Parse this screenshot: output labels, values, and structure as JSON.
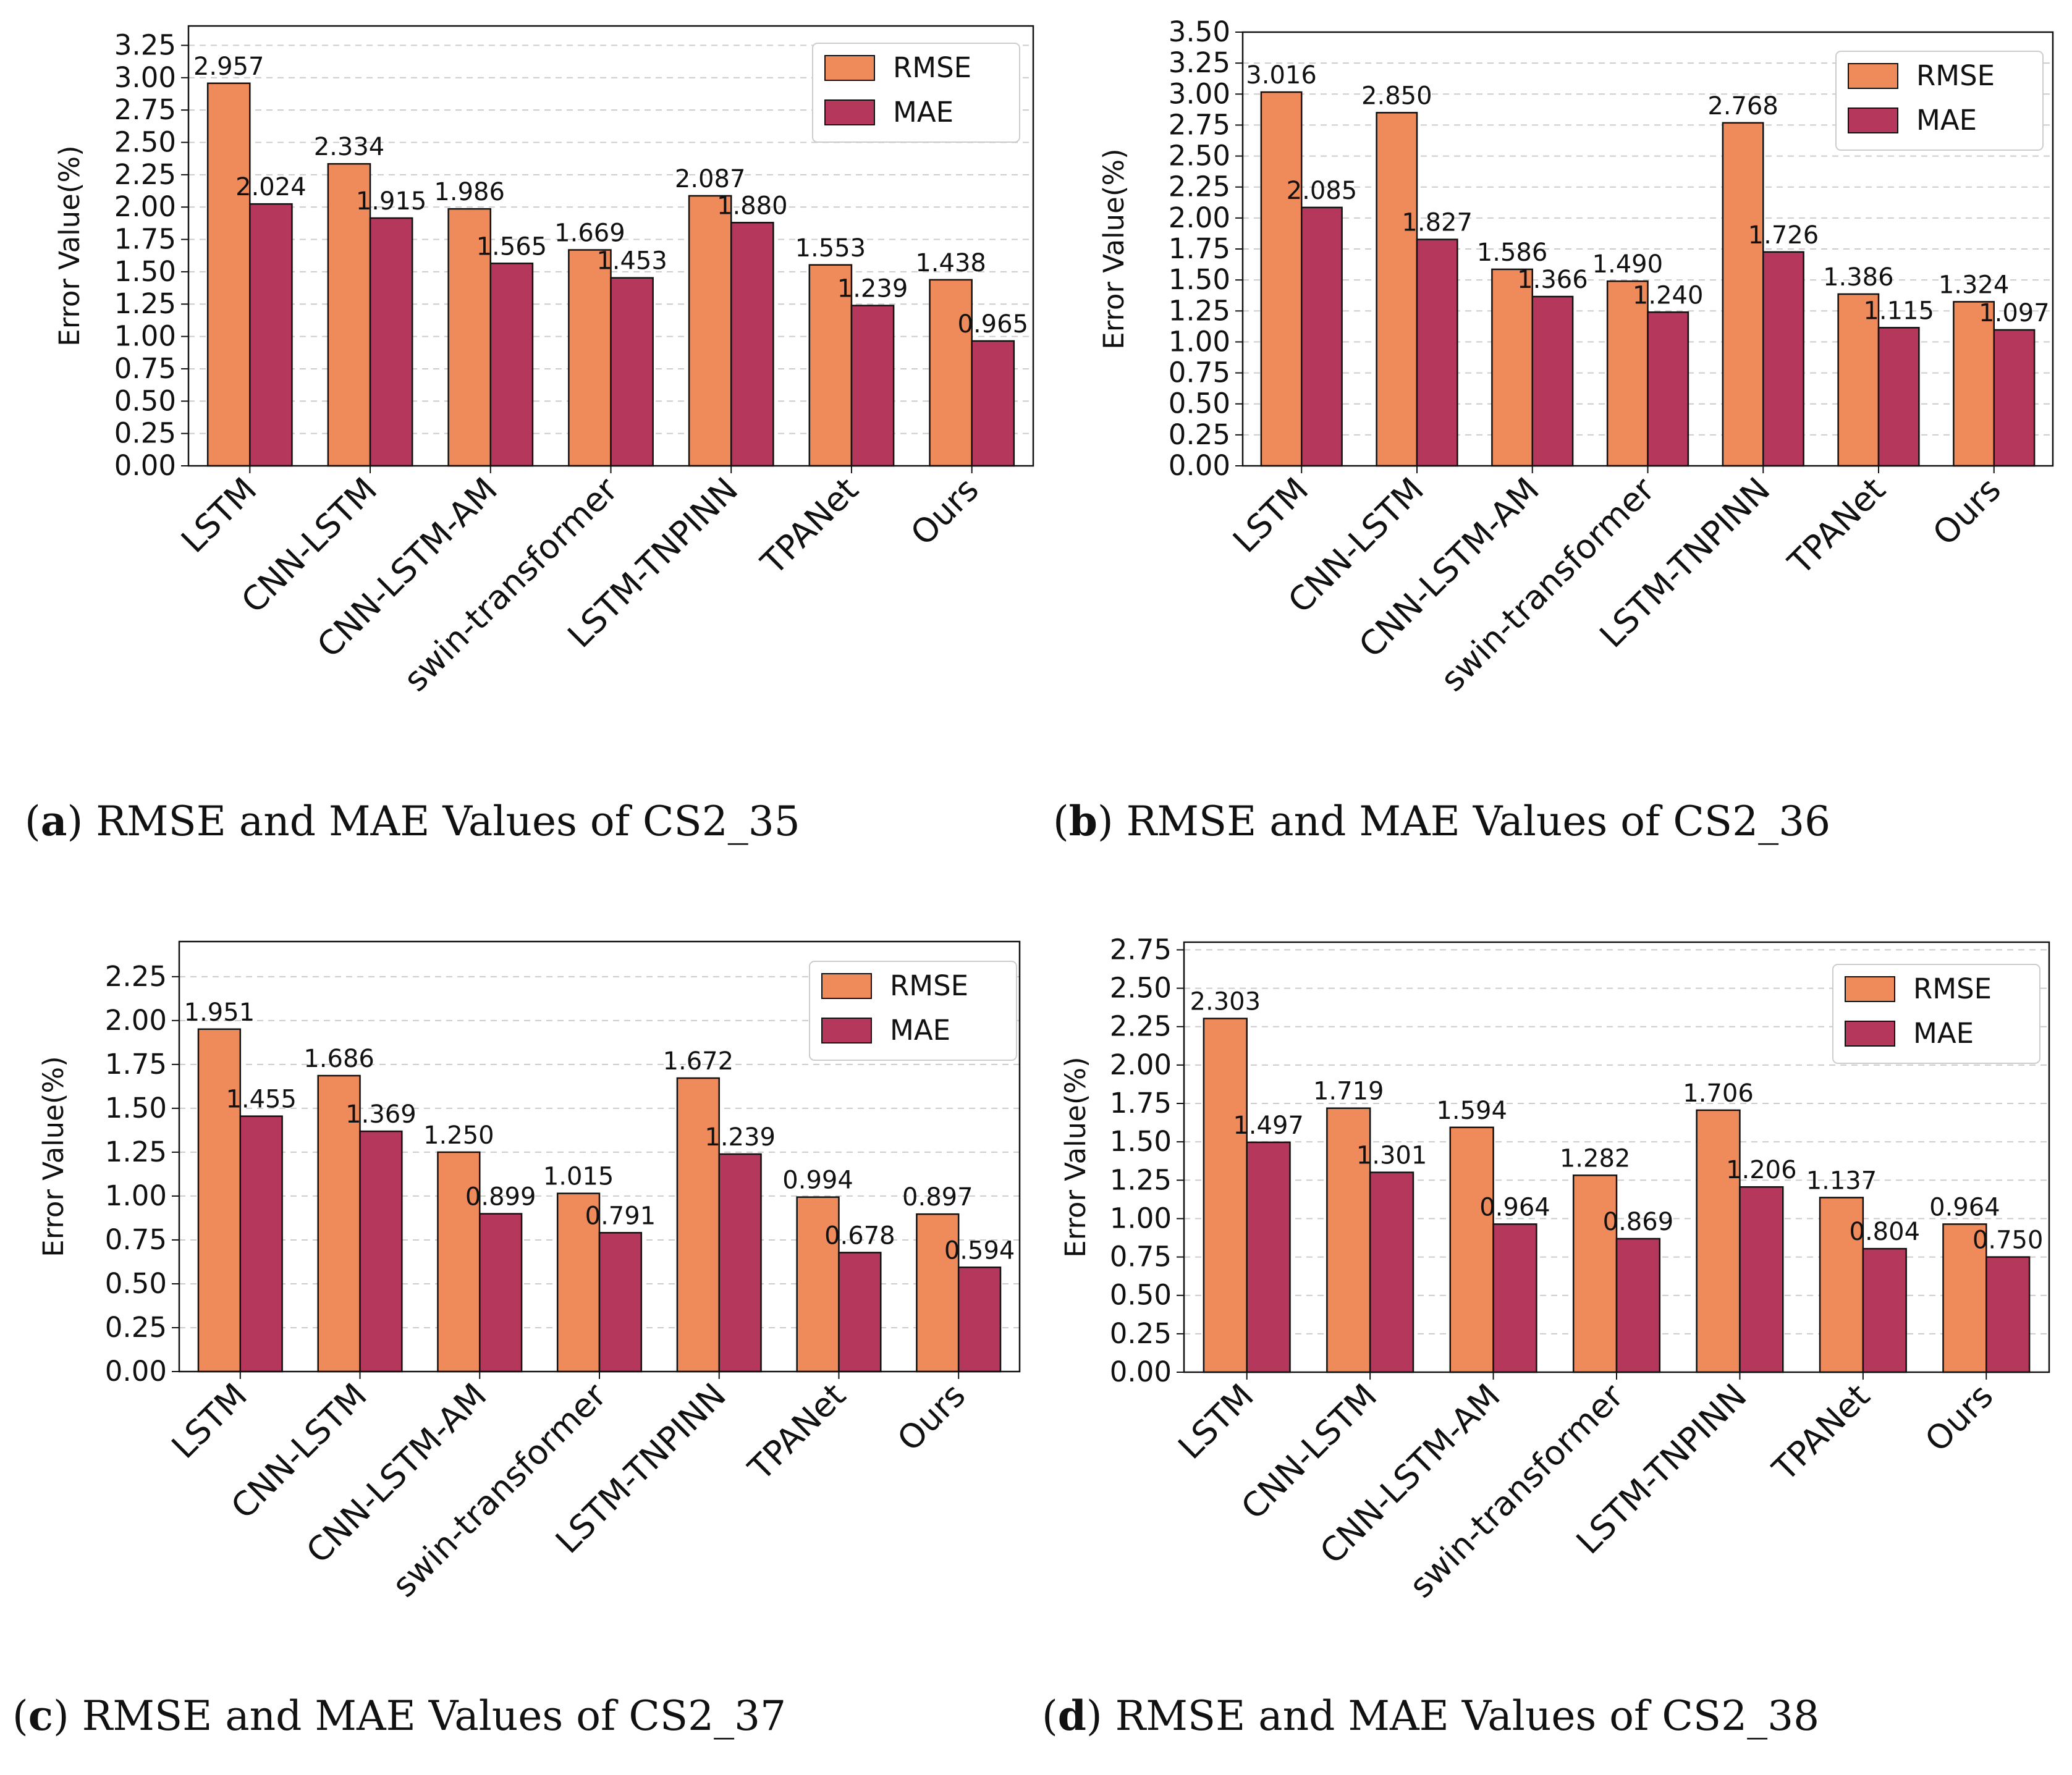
{
  "colors": {
    "rmse": "#ef8a5b",
    "mae": "#b5385c",
    "edge": "#111111",
    "grid": "#cccccc"
  },
  "chart_data": [
    {
      "type": "bar",
      "panel_letter": "a",
      "caption": "RMSE and MAE Values of CS2_35",
      "categories": [
        "LSTM",
        "CNN-LSTM",
        "CNN-LSTM-AM",
        "swin-transformer",
        "LSTM-TNPINN",
        "TPANet",
        "Ours"
      ],
      "series": [
        {
          "name": "RMSE",
          "values": [
            2.957,
            2.334,
            1.986,
            1.669,
            2.087,
            1.553,
            1.438
          ],
          "labels": [
            "2.957",
            "2.334",
            "1.986",
            "1.669",
            "2.087",
            "1.553",
            "1.438"
          ]
        },
        {
          "name": "MAE",
          "values": [
            2.024,
            1.915,
            1.565,
            1.453,
            1.88,
            1.239,
            0.965
          ],
          "labels": [
            "2.024",
            "1.915",
            "1.565",
            "1.453",
            "1.880",
            "1.239",
            "0.965"
          ]
        }
      ],
      "ylabel": "Error Value(%)",
      "ylim": [
        0,
        3.4
      ],
      "yticks": [
        "0.00",
        "0.25",
        "0.50",
        "0.75",
        "1.00",
        "1.25",
        "1.50",
        "1.75",
        "2.00",
        "2.25",
        "2.50",
        "2.75",
        "3.00",
        "3.25"
      ],
      "legend": "top-right",
      "grid": true
    },
    {
      "type": "bar",
      "panel_letter": "b",
      "caption": "RMSE and MAE Values of CS2_36",
      "categories": [
        "LSTM",
        "CNN-LSTM",
        "CNN-LSTM-AM",
        "swin-transformer",
        "LSTM-TNPINN",
        "TPANet",
        "Ours"
      ],
      "series": [
        {
          "name": "RMSE",
          "values": [
            3.016,
            2.85,
            1.586,
            1.49,
            2.768,
            1.386,
            1.324
          ],
          "labels": [
            "3.016",
            "2.850",
            "1.586",
            "1.490",
            "2.768",
            "1.386",
            "1.324"
          ]
        },
        {
          "name": "MAE",
          "values": [
            2.085,
            1.827,
            1.366,
            1.24,
            1.726,
            1.115,
            1.097
          ],
          "labels": [
            "2.085",
            "1.827",
            "1.366",
            "1.240",
            "1.726",
            "1.115",
            "1.097"
          ]
        }
      ],
      "ylabel": "Error Value(%)",
      "ylim": [
        0,
        3.5
      ],
      "yticks": [
        "0.00",
        "0.25",
        "0.50",
        "0.75",
        "1.00",
        "1.25",
        "1.50",
        "1.75",
        "2.00",
        "2.25",
        "2.50",
        "2.75",
        "3.00",
        "3.25",
        "3.50"
      ],
      "legend": "top-right",
      "grid": true
    },
    {
      "type": "bar",
      "panel_letter": "c",
      "caption": "RMSE and MAE Values of CS2_37",
      "categories": [
        "LSTM",
        "CNN-LSTM",
        "CNN-LSTM-AM",
        "swin-transformer",
        "LSTM-TNPINN",
        "TPANet",
        "Ours"
      ],
      "series": [
        {
          "name": "RMSE",
          "values": [
            1.951,
            1.686,
            1.25,
            1.015,
            1.672,
            0.994,
            0.897
          ],
          "labels": [
            "1.951",
            "1.686",
            "1.250",
            "1.015",
            "1.672",
            "0.994",
            "0.897"
          ]
        },
        {
          "name": "MAE",
          "values": [
            1.455,
            1.369,
            0.899,
            0.791,
            1.239,
            0.678,
            0.594
          ],
          "labels": [
            "1.455",
            "1.369",
            "0.899",
            "0.791",
            "1.239",
            "0.678",
            "0.594"
          ]
        }
      ],
      "ylabel": "Error Value(%)",
      "ylim": [
        0,
        2.45
      ],
      "yticks": [
        "0.00",
        "0.25",
        "0.50",
        "0.75",
        "1.00",
        "1.25",
        "1.50",
        "1.75",
        "2.00",
        "2.25"
      ],
      "legend": "top-right",
      "grid": true
    },
    {
      "type": "bar",
      "panel_letter": "d",
      "caption": "RMSE and MAE Values of CS2_38",
      "categories": [
        "LSTM",
        "CNN-LSTM",
        "CNN-LSTM-AM",
        "swin-transformer",
        "LSTM-TNPINN",
        "TPANet",
        "Ours"
      ],
      "series": [
        {
          "name": "RMSE",
          "values": [
            2.303,
            1.719,
            1.594,
            1.282,
            1.706,
            1.137,
            0.964
          ],
          "labels": [
            "2.303",
            "1.719",
            "1.594",
            "1.282",
            "1.706",
            "1.137",
            "0.964"
          ]
        },
        {
          "name": "MAE",
          "values": [
            1.497,
            1.301,
            0.964,
            0.869,
            1.206,
            0.804,
            0.75
          ],
          "labels": [
            "1.497",
            "1.301",
            "0.964",
            "0.869",
            "1.206",
            "0.804",
            "0.750"
          ]
        }
      ],
      "ylabel": "Error Value(%)",
      "ylim": [
        0,
        2.8
      ],
      "yticks": [
        "0.00",
        "0.25",
        "0.50",
        "0.75",
        "1.00",
        "1.25",
        "1.50",
        "1.75",
        "2.00",
        "2.25",
        "2.50",
        "2.75"
      ],
      "legend": "top-right",
      "grid": true
    }
  ]
}
